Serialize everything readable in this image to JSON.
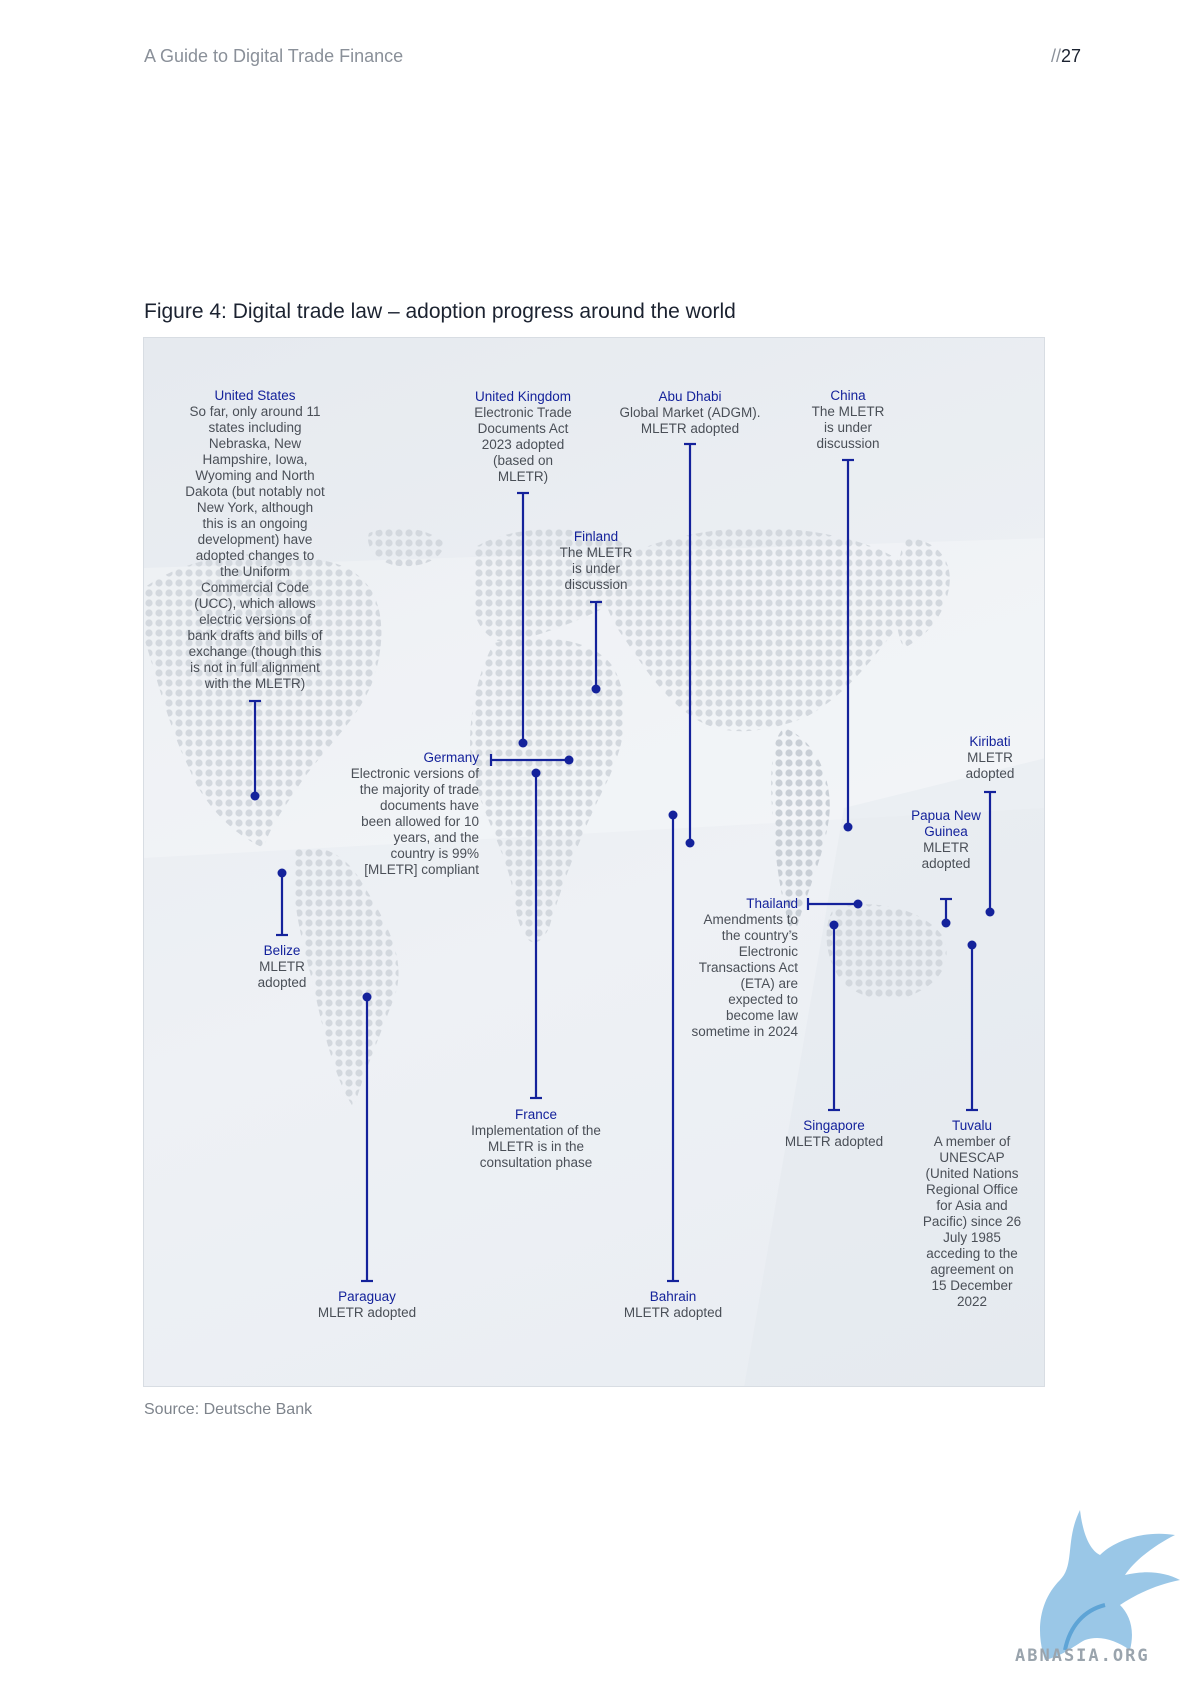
{
  "header": {
    "title": "A Guide to Digital Trade Finance",
    "page_prefix": "//",
    "page_number": "27"
  },
  "figure": {
    "title": "Figure 4: Digital trade law – adoption progress around the world",
    "source": "Source: Deutsche Bank",
    "annotations": [
      {
        "country": "United States",
        "text": "So far, only around 11 states including Nebraska, New Hampshire, Iowa, Wyoming and North Dakota (but notably not New York, although this is an ongoing development) have adopted changes to the Uniform Commercial Code (UCC), which allows electric versions of bank drafts and bills of exchange (though this is not in full alignment with the MLETR)"
      },
      {
        "country": "United Kingdom",
        "text": "Electronic Trade Documents Act 2023 adopted (based on MLETR)"
      },
      {
        "country": "Abu Dhabi",
        "text": "Global Market (ADGM). MLETR adopted"
      },
      {
        "country": "China",
        "text": "The MLETR is under discussion"
      },
      {
        "country": "Finland",
        "text": "The MLETR is under discussion"
      },
      {
        "country": "Kiribati",
        "text": "MLETR adopted"
      },
      {
        "country": "Germany",
        "text": "Electronic versions of the majority of trade documents have been allowed for 10 years, and the country is 99% [MLETR] compliant"
      },
      {
        "country": "Papua New Guinea",
        "text": "MLETR adopted"
      },
      {
        "country": "Thailand",
        "text": "Amendments to the country’s Electronic Transactions Act (ETA) are expected to become law sometime in 2024"
      },
      {
        "country": "Belize",
        "text": "MLETR adopted"
      },
      {
        "country": "France",
        "text": "Implementation of the MLETR is in the consultation phase"
      },
      {
        "country": "Singapore",
        "text": "MLETR adopted"
      },
      {
        "country": "Tuvalu",
        "text": "A member of UNESCAP (United Nations Regional Office for Asia and Pacific) since 26 July 1985 acceding to the agreement on 15 December 2022"
      },
      {
        "country": "Paraguay",
        "text": "MLETR adopted"
      },
      {
        "country": "Bahrain",
        "text": "MLETR adopted"
      }
    ]
  },
  "colors": {
    "accent": "#14229b",
    "map_dots": "#d3d8de",
    "text": "#4a4f57"
  },
  "logo": {
    "text": "ABNASIA.ORG"
  }
}
